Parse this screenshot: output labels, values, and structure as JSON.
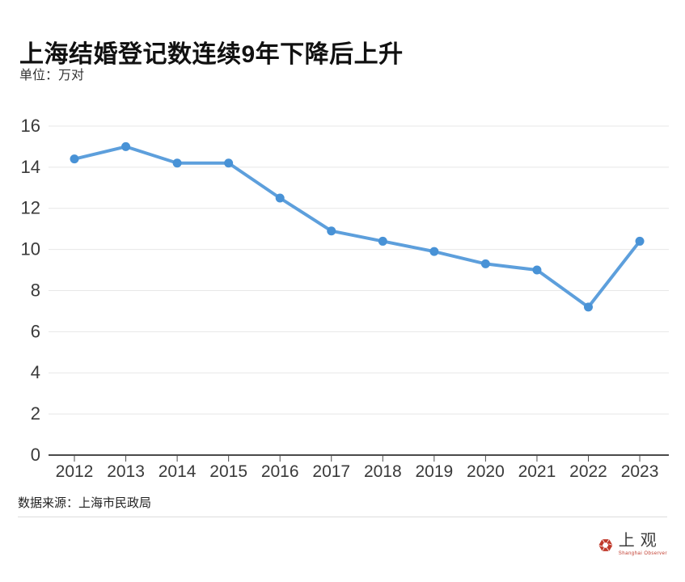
{
  "header": {
    "title": "上海结婚登记数连续9年下降后上升",
    "unit_label": "单位：万对"
  },
  "chart_data": {
    "type": "line",
    "categories": [
      "2012",
      "2013",
      "2014",
      "2015",
      "2016",
      "2017",
      "2018",
      "2019",
      "2020",
      "2021",
      "2022",
      "2023"
    ],
    "values": [
      14.4,
      15.0,
      14.2,
      14.2,
      12.5,
      10.9,
      10.4,
      9.9,
      9.3,
      9.0,
      7.2,
      10.4
    ],
    "title": "上海结婚登记数连续9年下降后上升",
    "xlabel": "",
    "ylabel": "万对",
    "ylim": [
      0,
      16
    ],
    "ytick_step": 2,
    "grid": true,
    "legend_position": "none",
    "line_color": "#5d9fdc",
    "marker_color": "#4892d6",
    "gridline_color": "#e7e7e7",
    "axis_color": "#4a4a4a",
    "tick_label_color": "#3a3a3a"
  },
  "footer": {
    "source": "数据来源：上海市民政局",
    "logo": {
      "name": "上观",
      "subtitle": "Shanghai Observer",
      "brand_color": "#c0392b",
      "icon": "aperture-hexagon-icon"
    }
  }
}
